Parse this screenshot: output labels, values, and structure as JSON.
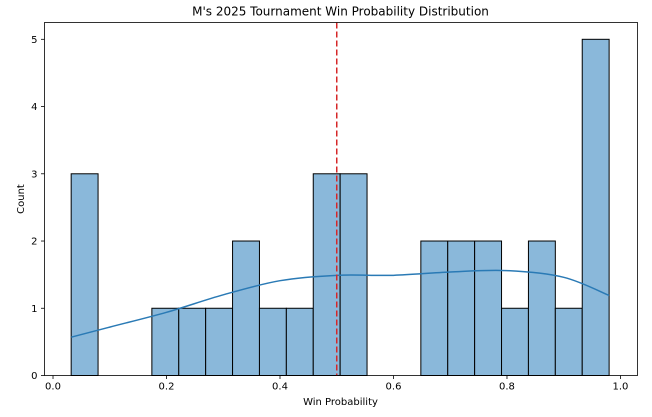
{
  "chart_data": {
    "type": "bar",
    "subtype": "histogram",
    "title": "M's 2025 Tournament Win Probability Distribution",
    "xlabel": "Win Probability",
    "ylabel": "Count",
    "xlim": [
      -0.015,
      1.03
    ],
    "ylim": [
      0,
      5.25
    ],
    "x_ticks": [
      0.0,
      0.2,
      0.4,
      0.6,
      0.8,
      1.0
    ],
    "x_tick_labels": [
      "0.0",
      "0.2",
      "0.4",
      "0.6",
      "0.8",
      "1.0"
    ],
    "y_ticks": [
      0,
      1,
      2,
      3,
      4,
      5
    ],
    "y_tick_labels": [
      "0",
      "1",
      "2",
      "3",
      "4",
      "5"
    ],
    "bin_edges": [
      0.032,
      0.0794,
      0.1268,
      0.1742,
      0.2216,
      0.269,
      0.3164,
      0.3638,
      0.4112,
      0.4586,
      0.506,
      0.5534,
      0.6008,
      0.6482,
      0.6956,
      0.743,
      0.7904,
      0.8378,
      0.8852,
      0.9326,
      0.98
    ],
    "counts": [
      3,
      0,
      0,
      1,
      1,
      1,
      2,
      1,
      1,
      3,
      3,
      0,
      0,
      2,
      2,
      2,
      1,
      2,
      1,
      5
    ],
    "bar_color": "#8ab8da",
    "bar_edge_color": "#000000",
    "kde": {
      "color": "#2a7ab5",
      "x": [
        0.032,
        0.1,
        0.2,
        0.3,
        0.4,
        0.5,
        0.6,
        0.7,
        0.8,
        0.9,
        0.98
      ],
      "y": [
        0.57,
        0.72,
        0.94,
        1.2,
        1.41,
        1.49,
        1.49,
        1.54,
        1.56,
        1.46,
        1.19
      ]
    },
    "reference_line": {
      "x": 0.5,
      "color": "#d62728",
      "style": "dashed"
    },
    "grid": false,
    "legend": "none"
  }
}
